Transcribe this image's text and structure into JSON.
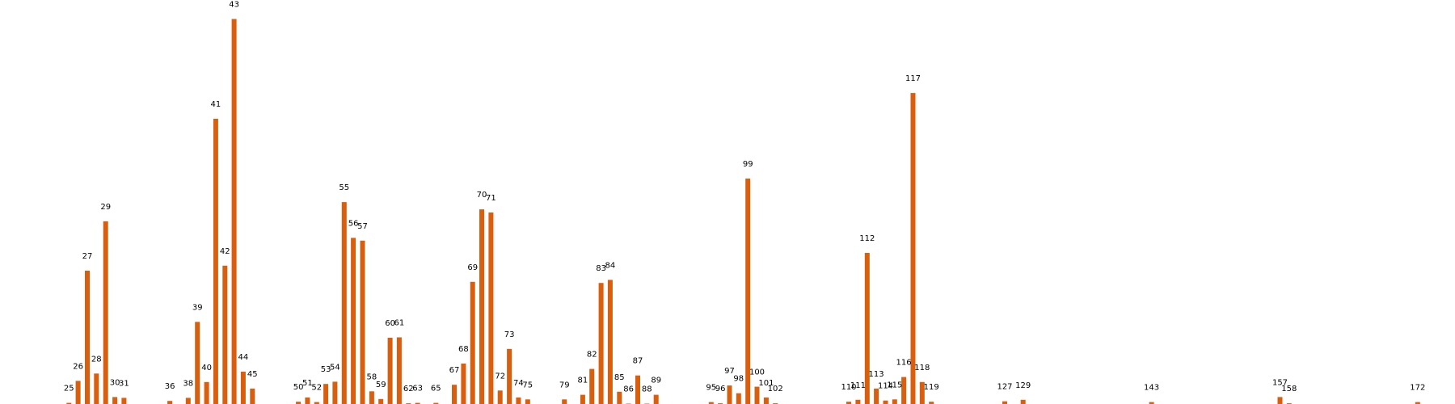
{
  "chart_data": {
    "type": "bar",
    "title": "",
    "xlabel": "",
    "ylabel": "",
    "grid": false,
    "legend": "none",
    "axes_visible": false,
    "bar_color": "#d95f0e",
    "x_range": [
      23,
      177
    ],
    "ylim": [
      0,
      1.0
    ],
    "value_labels_note": "each bar is labelled above with its x value",
    "x": [
      25,
      26,
      27,
      28,
      29,
      30,
      31,
      36,
      38,
      39,
      40,
      41,
      42,
      43,
      44,
      45,
      50,
      51,
      52,
      53,
      54,
      55,
      56,
      57,
      58,
      59,
      60,
      61,
      62,
      63,
      65,
      67,
      68,
      69,
      70,
      71,
      72,
      73,
      74,
      75,
      79,
      81,
      82,
      83,
      84,
      85,
      86,
      87,
      88,
      89,
      95,
      96,
      97,
      98,
      99,
      100,
      101,
      102,
      110,
      111,
      112,
      113,
      114,
      115,
      116,
      117,
      118,
      119,
      127,
      129,
      143,
      157,
      158,
      172
    ],
    "values": [
      0.004,
      0.061,
      0.347,
      0.08,
      0.475,
      0.019,
      0.017,
      0.009,
      0.017,
      0.214,
      0.058,
      0.741,
      0.36,
      1.0,
      0.085,
      0.041,
      0.007,
      0.018,
      0.006,
      0.053,
      0.059,
      0.525,
      0.432,
      0.425,
      0.034,
      0.014,
      0.173,
      0.174,
      0.003,
      0.004,
      0.004,
      0.051,
      0.106,
      0.318,
      0.506,
      0.498,
      0.036,
      0.144,
      0.018,
      0.013,
      0.013,
      0.025,
      0.092,
      0.315,
      0.323,
      0.033,
      0.002,
      0.075,
      0.002,
      0.025,
      0.006,
      0.003,
      0.049,
      0.029,
      0.586,
      0.046,
      0.018,
      0.003,
      0.007,
      0.012,
      0.393,
      0.041,
      0.01,
      0.013,
      0.071,
      0.808,
      0.058,
      0.007,
      0.008,
      0.012,
      0.006,
      0.019,
      0.003,
      0.006
    ]
  }
}
